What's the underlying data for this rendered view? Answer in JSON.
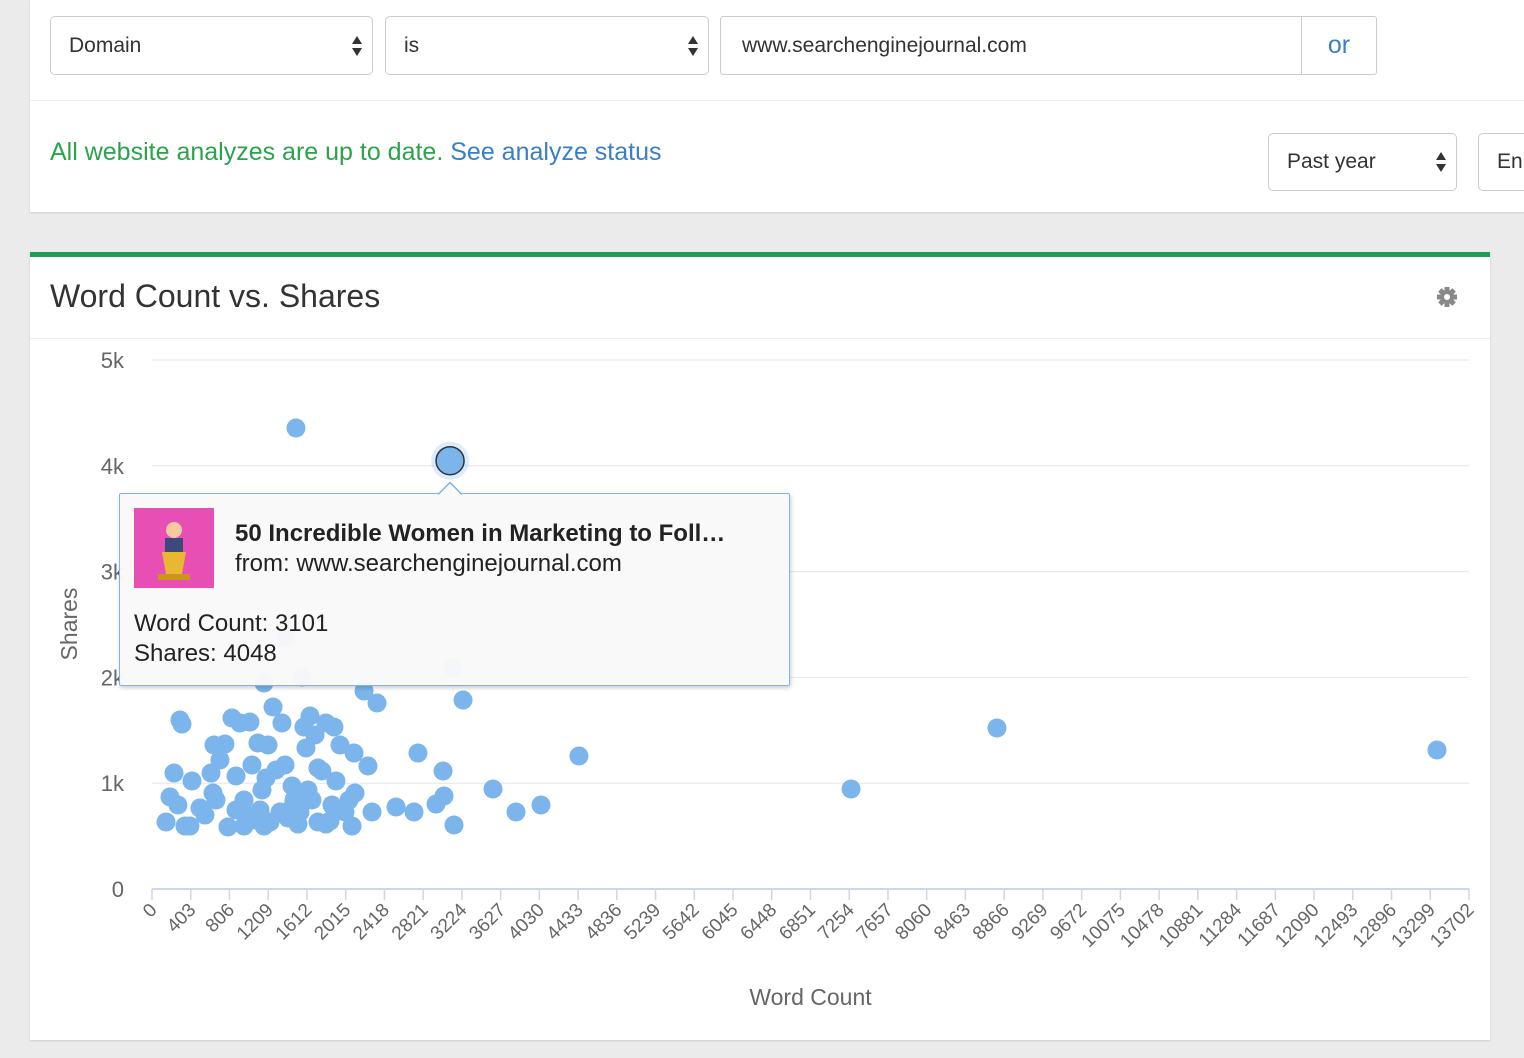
{
  "filters": {
    "field": "Domain",
    "operator": "is",
    "value": "www.searchenginejournal.com",
    "or_button": "or"
  },
  "status": {
    "message": "All website analyzes are up to date.",
    "link": "See analyze status"
  },
  "period": "Past year",
  "language": "En",
  "chart_data": {
    "type": "scatter",
    "title": "Word Count vs. Shares",
    "x_label": "Word Count",
    "y_label": "Shares",
    "color": "#7cb5ec",
    "highlight_index": 1,
    "x": [
      1498,
      3101,
      8791,
      13369,
      7273,
      4442,
      4047,
      3787,
      3548,
      3236,
      3142,
      3038,
      3028,
      2955,
      2767,
      2726,
      2539,
      2341,
      2206,
      3132,
      1394,
      1561,
      1165,
      2247,
      146,
      187,
      229,
      270,
      291,
      312,
      343,
      395,
      416,
      499,
      551,
      614,
      635,
      759,
      790,
      832,
      874,
      915,
      957,
      1019,
      1040,
      1102,
      1144,
      1165,
      1207,
      1259,
      1290,
      1332,
      1352,
      1384,
      1436,
      1477,
      1519,
      1581,
      1602,
      1644,
      1664,
      1696,
      1727,
      1768,
      1810,
      1852,
      1893,
      1914,
      1956,
      2008,
      2050,
      2102,
      2112,
      2081,
      2289,
      874,
      999,
      1082,
      1228,
      1415,
      1540,
      1727,
      1810,
      1872,
      957,
      1124,
      645,
      707,
      1186,
      1457,
      1623,
      666
    ],
    "values": [
      4357,
      4048,
      1522,
      1314,
      945,
      1257,
      794,
      728,
      945,
      1786,
      605,
      879,
      1115,
      803,
      1285,
      728,
      775,
      1758,
      1871,
      2089,
      2372,
      2004,
      1947,
      1163,
      633,
      870,
      1096,
      794,
      1597,
      1559,
      595,
      595,
      1021,
      766,
      699,
      1096,
      907,
      1370,
      586,
      1616,
      1068,
      1569,
      841,
      1578,
      1172,
      1380,
      936,
      595,
      1361,
      1720,
      1125,
      728,
      1569,
      1172,
      747,
      841,
      614,
      1531,
      1333,
      1635,
      841,
      1456,
      1144,
      1115,
      1569,
      643,
      1531,
      1021,
      1361,
      728,
      841,
      1285,
      907,
      595,
      728,
      747,
      690,
      652,
      633,
      671,
      728,
      633,
      614,
      794,
      595,
      747,
      1361,
      1219,
      1049,
      974,
      936,
      841
    ],
    "xlim": [
      0,
      13702
    ],
    "ylim": [
      0,
      5000
    ],
    "xticks": [
      0,
      403,
      806,
      1209,
      1612,
      2015,
      2418,
      2821,
      3224,
      3627,
      4030,
      4433,
      4836,
      5239,
      5642,
      6045,
      6448,
      6851,
      7254,
      7657,
      8060,
      8463,
      8866,
      9269,
      9672,
      10075,
      10478,
      10881,
      11284,
      11687,
      12090,
      12493,
      12896,
      13299,
      13702
    ],
    "yticks": [
      0,
      {
        "value": 1000,
        "label": "1k"
      },
      {
        "value": 2000,
        "label": "2k"
      },
      {
        "value": 3000,
        "label": "3k"
      },
      {
        "value": 4000,
        "label": "4k"
      },
      {
        "value": 5000,
        "label": "5k"
      }
    ],
    "grid": true
  },
  "tooltip": {
    "title": "50 Incredible Women in Marketing to Foll…",
    "source": "from: www.searchenginejournal.com",
    "lines": [
      "Word Count: 3101",
      "Shares: 4048"
    ]
  }
}
